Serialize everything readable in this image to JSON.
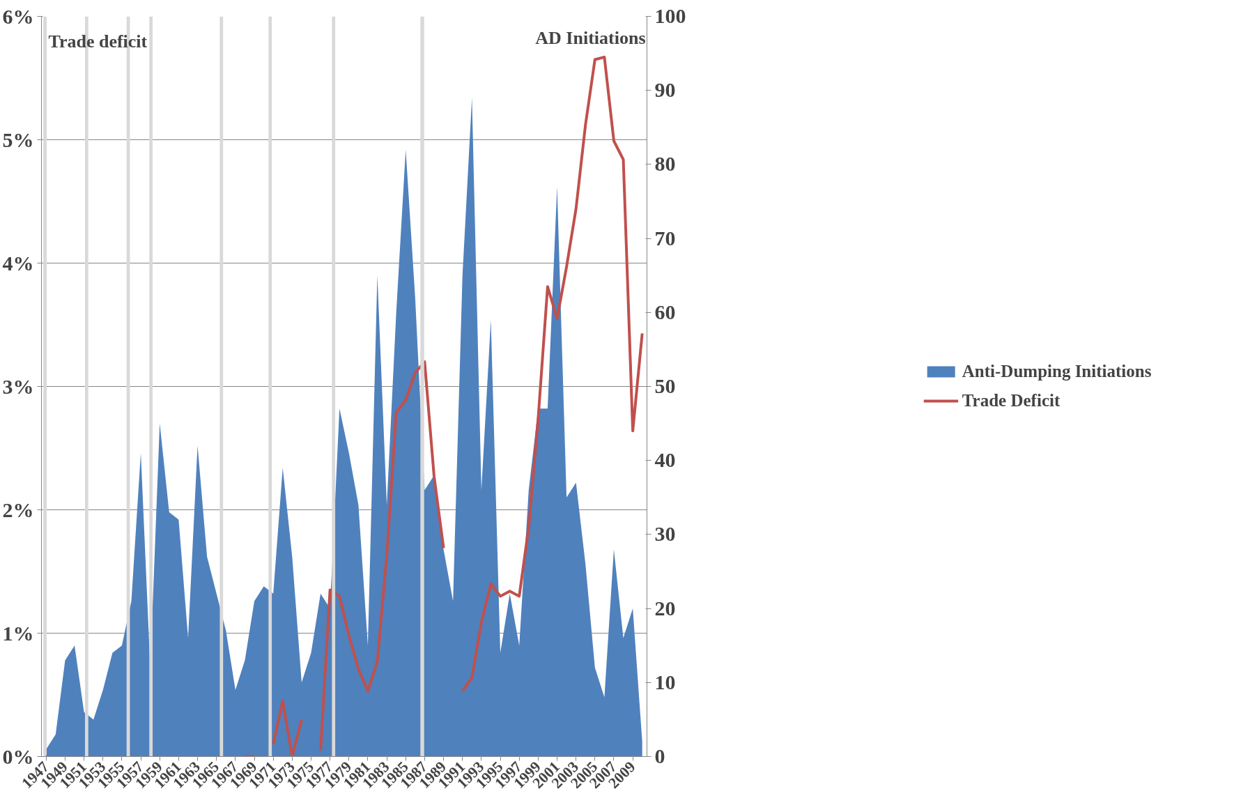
{
  "chart_data": {
    "type": "area",
    "ylabel": "Trade deficit",
    "y2label": "AD Initiations",
    "x": [
      1947,
      1948,
      1949,
      1950,
      1951,
      1952,
      1953,
      1954,
      1955,
      1956,
      1957,
      1958,
      1959,
      1960,
      1961,
      1962,
      1963,
      1964,
      1965,
      1966,
      1967,
      1968,
      1969,
      1970,
      1971,
      1972,
      1973,
      1974,
      1975,
      1976,
      1977,
      1978,
      1979,
      1980,
      1981,
      1982,
      1983,
      1984,
      1985,
      1986,
      1987,
      1988,
      1989,
      1990,
      1991,
      1992,
      1993,
      1994,
      1995,
      1996,
      1997,
      1998,
      1999,
      2000,
      2001,
      2002,
      2003,
      2004,
      2005,
      2006,
      2007,
      2008,
      2009,
      2010
    ],
    "xlim": [
      1946.5,
      2010.5
    ],
    "xticks": [
      1947,
      1949,
      1951,
      1953,
      1955,
      1957,
      1959,
      1961,
      1963,
      1965,
      1967,
      1969,
      1971,
      1973,
      1975,
      1977,
      1979,
      1981,
      1983,
      1985,
      1987,
      1989,
      1991,
      1993,
      1995,
      1997,
      1999,
      2001,
      2003,
      2005,
      2007,
      2009
    ],
    "ylim": [
      0,
      6
    ],
    "yticks": [
      {
        "value": 0,
        "label": "0%"
      },
      {
        "value": 1,
        "label": "1%"
      },
      {
        "value": 2,
        "label": "2%"
      },
      {
        "value": 3,
        "label": "3%"
      },
      {
        "value": 4,
        "label": "4%"
      },
      {
        "value": 5,
        "label": "5%"
      },
      {
        "value": 6,
        "label": "6%"
      }
    ],
    "y2lim": [
      0,
      100
    ],
    "y2ticks": [
      0,
      10,
      20,
      30,
      40,
      50,
      60,
      70,
      80,
      90,
      100
    ],
    "grid": "y",
    "legend": "right",
    "series": [
      {
        "name": "Anti-Dumping Initiations",
        "axis": "y2",
        "color": "#4f81bd",
        "values": [
          1,
          3,
          13,
          15,
          6,
          5,
          9,
          14,
          15,
          21,
          41,
          12,
          45,
          33,
          32,
          16,
          42,
          27,
          22,
          17,
          9,
          13,
          21,
          23,
          22,
          39,
          27,
          10,
          14,
          22,
          20,
          47,
          41,
          34,
          15,
          65,
          34,
          60,
          82,
          62,
          36,
          38,
          28,
          21,
          65,
          89,
          36,
          59,
          14,
          22,
          15,
          36,
          47,
          47,
          77,
          35,
          37,
          26,
          12,
          8,
          28,
          16,
          20,
          2
        ]
      },
      {
        "name": "Trade Deficit",
        "type": "line",
        "color": "#c0504d",
        "values": [
          null,
          null,
          null,
          null,
          null,
          null,
          null,
          null,
          null,
          null,
          null,
          null,
          null,
          null,
          null,
          null,
          null,
          null,
          null,
          null,
          null,
          0,
          0,
          null,
          0.1,
          0.45,
          0,
          0.3,
          null,
          0.05,
          1.35,
          1.3,
          0.98,
          0.71,
          0.53,
          0.77,
          1.63,
          2.79,
          2.89,
          3.11,
          3.2,
          2.27,
          1.69,
          null,
          0.53,
          0.64,
          1.09,
          1.4,
          1.3,
          1.34,
          1.3,
          1.86,
          2.74,
          3.81,
          3.55,
          3.97,
          4.44,
          5.12,
          5.65,
          5.67,
          4.99,
          4.84,
          2.64,
          3.43
        ]
      }
    ],
    "bands": [
      {
        "axis": "x",
        "from": 1946.7,
        "to": 1947.05,
        "color": "#d9d9d9"
      },
      {
        "axis": "x",
        "from": 1951.1,
        "to": 1951.45,
        "color": "#d9d9d9"
      },
      {
        "axis": "x",
        "from": 1955.5,
        "to": 1955.85,
        "color": "#d9d9d9"
      },
      {
        "axis": "x",
        "from": 1957.9,
        "to": 1958.25,
        "color": "#d9d9d9"
      },
      {
        "axis": "x",
        "from": 1965.35,
        "to": 1965.7,
        "color": "#d9d9d9"
      },
      {
        "axis": "x",
        "from": 1970.5,
        "to": 1970.85,
        "color": "#d9d9d9"
      },
      {
        "axis": "x",
        "from": 1977.2,
        "to": 1977.55,
        "color": "#d9d9d9"
      },
      {
        "axis": "x",
        "from": 1986.55,
        "to": 1986.95,
        "color": "#d9d9d9"
      }
    ]
  }
}
